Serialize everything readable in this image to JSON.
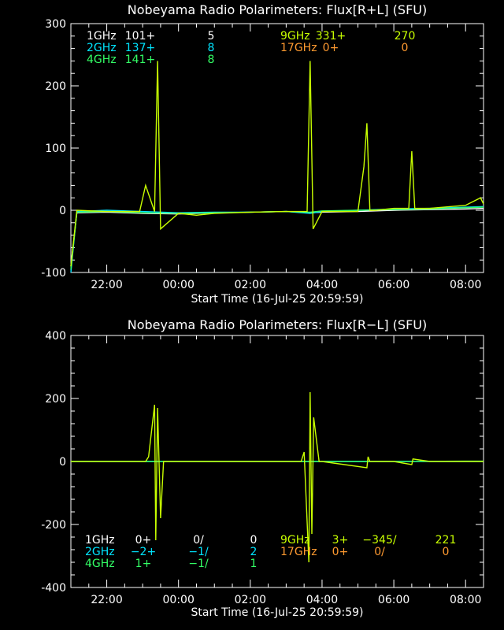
{
  "chart_data": [
    {
      "type": "line",
      "title": "Nobeyama Radio Polarimeters: Flux[R+L] (SFU)",
      "xlabel": "Start Time (16-Jul-25 20:59:59)",
      "ylabel": "",
      "x_start": "21:00",
      "xlim": [
        "21:00",
        "08:30"
      ],
      "xticks": [
        "22:00",
        "00:00",
        "02:00",
        "04:00",
        "06:00",
        "08:00"
      ],
      "ylim": [
        -100,
        300
      ],
      "yticks": [
        "-100",
        "0",
        "100",
        "200",
        "300"
      ],
      "legend_rows": [
        {
          "cells": [
            {
              "text": "1GHz",
              "color": "#ffffff"
            },
            {
              "text": "101+",
              "color": "#ffffff"
            },
            {
              "text": "5",
              "color": "#ffffff"
            },
            {
              "text": "9GHz",
              "color": "#c8ff00"
            },
            {
              "text": "331+",
              "color": "#c8ff00"
            },
            {
              "text": "270",
              "color": "#c8ff00"
            }
          ]
        },
        {
          "cells": [
            {
              "text": "2GHz",
              "color": "#00e5ff"
            },
            {
              "text": "137+",
              "color": "#00e5ff"
            },
            {
              "text": "8",
              "color": "#00e5ff"
            },
            {
              "text": "17GHz",
              "color": "#ff9a30"
            },
            {
              "text": "0+",
              "color": "#ff9a30"
            },
            {
              "text": "0",
              "color": "#ff9a30"
            }
          ]
        },
        {
          "cells": [
            {
              "text": "4GHz",
              "color": "#33ff66"
            },
            {
              "text": "141+",
              "color": "#33ff66"
            },
            {
              "text": "8",
              "color": "#33ff66"
            }
          ]
        }
      ],
      "series": [
        {
          "name": "1GHz",
          "color": "#ffffff",
          "x": [
            "21:00",
            "21:10",
            "22:00",
            "23:00",
            "00:00",
            "01:00",
            "02:00",
            "03:00",
            "03:40",
            "04:00",
            "05:00",
            "06:00",
            "07:00",
            "08:00",
            "08:30"
          ],
          "y": [
            -90,
            -4,
            -3,
            -5,
            -6,
            -4,
            -3,
            -2,
            -4,
            -3,
            -2,
            0,
            1,
            2,
            3
          ]
        },
        {
          "name": "2GHz",
          "color": "#00e5ff",
          "x": [
            "21:00",
            "21:10",
            "22:00",
            "23:00",
            "00:00",
            "01:00",
            "02:00",
            "03:00",
            "03:40",
            "04:00",
            "05:00",
            "06:00",
            "07:00",
            "08:00",
            "08:30"
          ],
          "y": [
            -100,
            -2,
            0,
            -2,
            -4,
            -3,
            -3,
            -2,
            -5,
            -2,
            0,
            2,
            3,
            5,
            6
          ]
        },
        {
          "name": "4GHz",
          "color": "#33ff66",
          "x": [
            "21:00",
            "21:10",
            "22:00",
            "23:00",
            "00:00",
            "01:00",
            "02:00",
            "03:00",
            "03:40",
            "04:00",
            "05:00",
            "06:00",
            "07:00",
            "08:00",
            "08:30"
          ],
          "y": [
            -95,
            -3,
            -2,
            -4,
            -5,
            -4,
            -3,
            -2,
            -3,
            -1,
            0,
            1,
            2,
            4,
            5
          ]
        },
        {
          "name": "9GHz",
          "color": "#c8ff00",
          "x": [
            "21:00",
            "21:10",
            "22:00",
            "22:55",
            "23:05",
            "23:20",
            "23:25",
            "23:30",
            "00:00",
            "00:30",
            "01:00",
            "02:00",
            "03:00",
            "03:35",
            "03:40",
            "03:45",
            "04:00",
            "05:00",
            "05:10",
            "05:15",
            "05:20",
            "05:30",
            "06:00",
            "06:25",
            "06:30",
            "06:35",
            "07:00",
            "08:00",
            "08:25",
            "08:30"
          ],
          "y": [
            -90,
            0,
            -2,
            -2,
            40,
            -2,
            240,
            -30,
            -5,
            -8,
            -5,
            -3,
            -2,
            -2,
            240,
            -30,
            -2,
            -2,
            70,
            140,
            0,
            0,
            3,
            3,
            95,
            3,
            3,
            8,
            20,
            10
          ]
        }
      ]
    },
    {
      "type": "line",
      "title": "Nobeyama Radio Polarimeters: Flux[R−L] (SFU)",
      "xlabel": "Start Time (16-Jul-25 20:59:59)",
      "ylabel": "",
      "x_start": "21:00",
      "xlim": [
        "21:00",
        "08:30"
      ],
      "xticks": [
        "22:00",
        "00:00",
        "02:00",
        "04:00",
        "06:00",
        "08:00"
      ],
      "ylim": [
        -400,
        400
      ],
      "yticks": [
        "-400",
        "-200",
        "0",
        "200",
        "400"
      ],
      "legend_rows": [
        {
          "cells": [
            {
              "text": "1GHz",
              "color": "#ffffff"
            },
            {
              "text": "0+",
              "color": "#ffffff"
            },
            {
              "text": "0/",
              "color": "#ffffff"
            },
            {
              "text": "0",
              "color": "#ffffff"
            },
            {
              "text": "9GHz",
              "color": "#c8ff00"
            },
            {
              "text": "3+",
              "color": "#c8ff00"
            },
            {
              "text": "−345/",
              "color": "#c8ff00"
            },
            {
              "text": "221",
              "color": "#c8ff00"
            }
          ]
        },
        {
          "cells": [
            {
              "text": "2GHz",
              "color": "#00e5ff"
            },
            {
              "text": "−2+",
              "color": "#00e5ff"
            },
            {
              "text": "−1/",
              "color": "#00e5ff"
            },
            {
              "text": "2",
              "color": "#00e5ff"
            },
            {
              "text": "17GHz",
              "color": "#ff9a30"
            },
            {
              "text": "0+",
              "color": "#ff9a30"
            },
            {
              "text": "0/",
              "color": "#ff9a30"
            },
            {
              "text": "0",
              "color": "#ff9a30"
            }
          ]
        },
        {
          "cells": [
            {
              "text": "4GHz",
              "color": "#33ff66"
            },
            {
              "text": "1+",
              "color": "#33ff66"
            },
            {
              "text": "−1/",
              "color": "#33ff66"
            },
            {
              "text": "1",
              "color": "#33ff66"
            }
          ]
        }
      ],
      "series": [
        {
          "name": "2GHz",
          "color": "#00e5ff",
          "x": [
            "21:00",
            "22:00",
            "00:00",
            "02:00",
            "04:00",
            "06:00",
            "08:00",
            "08:30"
          ],
          "y": [
            0,
            0,
            0,
            0,
            0,
            0,
            0,
            0
          ]
        },
        {
          "name": "4GHz",
          "color": "#33ff66",
          "x": [
            "21:00",
            "22:00",
            "00:00",
            "02:00",
            "04:00",
            "06:00",
            "08:00",
            "08:30"
          ],
          "y": [
            0,
            0,
            0,
            0,
            0,
            0,
            1,
            1
          ]
        },
        {
          "name": "9GHz",
          "color": "#c8ff00",
          "x": [
            "21:00",
            "22:00",
            "23:05",
            "23:10",
            "23:20",
            "23:22",
            "23:25",
            "23:30",
            "23:35",
            "00:00",
            "02:00",
            "03:25",
            "03:30",
            "03:38",
            "03:40",
            "03:43",
            "03:46",
            "03:55",
            "04:00",
            "05:15",
            "05:17",
            "05:20",
            "06:00",
            "06:30",
            "06:32",
            "07:00",
            "08:00",
            "08:30"
          ],
          "y": [
            0,
            0,
            0,
            15,
            180,
            -250,
            170,
            -180,
            0,
            0,
            0,
            0,
            30,
            -320,
            220,
            -230,
            140,
            0,
            0,
            -20,
            15,
            0,
            0,
            -10,
            8,
            0,
            0,
            0
          ]
        }
      ]
    }
  ]
}
